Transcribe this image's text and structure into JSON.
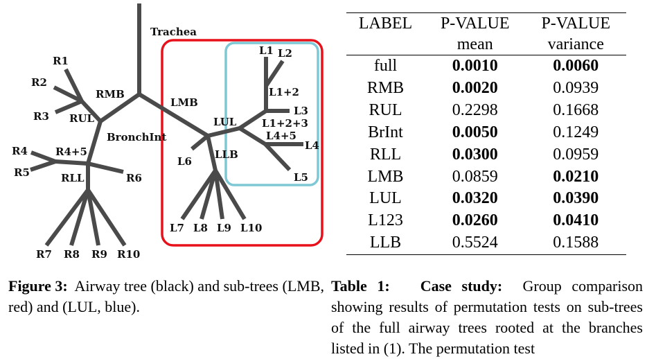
{
  "figure": {
    "labels": {
      "trachea": "Trachea",
      "rmb": "RMB",
      "lmb": "LMB",
      "bronchint": "BronchInt",
      "rul": "RUL",
      "r1": "R1",
      "r2": "R2",
      "r3": "R3",
      "r4": "R4",
      "r5": "R5",
      "r45": "R4+5",
      "rll": "RLL",
      "r6": "R6",
      "r7": "R7",
      "r8": "R8",
      "r9": "R9",
      "r10": "R10",
      "lul": "LUL",
      "llb": "LLB",
      "l1": "L1",
      "l2": "L2",
      "l12": "L1+2",
      "l3": "L3",
      "l123": "L1+2+3",
      "l45": "L4+5",
      "l4": "L4",
      "l5": "L5",
      "l6": "L6",
      "l7": "L7",
      "l8": "L8",
      "l9": "L9",
      "l10": "L10"
    },
    "subtree_colors": {
      "tree": "#4a4a4a",
      "lmb_box": "#e8101a",
      "lul_box": "#7ec8d6"
    },
    "caption": {
      "label": "Figure 3:",
      "text": "Airway tree (black) and sub-trees (LMB, red) and (LUL, blue)."
    }
  },
  "table": {
    "headers": {
      "label": "LABEL",
      "pvalue1": "P-VALUE",
      "pvalue2": "P-VALUE",
      "mean": "mean",
      "variance": "variance"
    },
    "rows": [
      {
        "label": "full",
        "mean": "0.0010",
        "variance": "0.0060",
        "mean_bold": true,
        "variance_bold": true
      },
      {
        "label": "RMB",
        "mean": "0.0020",
        "variance": "0.0939",
        "mean_bold": true,
        "variance_bold": false
      },
      {
        "label": "RUL",
        "mean": "0.2298",
        "variance": "0.1668",
        "mean_bold": false,
        "variance_bold": false
      },
      {
        "label": "BrInt",
        "mean": "0.0050",
        "variance": "0.1249",
        "mean_bold": true,
        "variance_bold": false
      },
      {
        "label": "RLL",
        "mean": "0.0300",
        "variance": "0.0959",
        "mean_bold": true,
        "variance_bold": false
      },
      {
        "label": "LMB",
        "mean": "0.0859",
        "variance": "0.0210",
        "mean_bold": false,
        "variance_bold": true
      },
      {
        "label": "LUL",
        "mean": "0.0320",
        "variance": "0.0390",
        "mean_bold": true,
        "variance_bold": true
      },
      {
        "label": "L123",
        "mean": "0.0260",
        "variance": "0.0410",
        "mean_bold": true,
        "variance_bold": true
      },
      {
        "label": "LLB",
        "mean": "0.5524",
        "variance": "0.1588",
        "mean_bold": false,
        "variance_bold": false
      }
    ],
    "caption": {
      "label": "Table 1:",
      "title": "Case study:",
      "text": "Group comparison showing results of permutation tests on sub-trees of the full airway trees rooted at the branches listed in (1). The permutation test"
    }
  }
}
